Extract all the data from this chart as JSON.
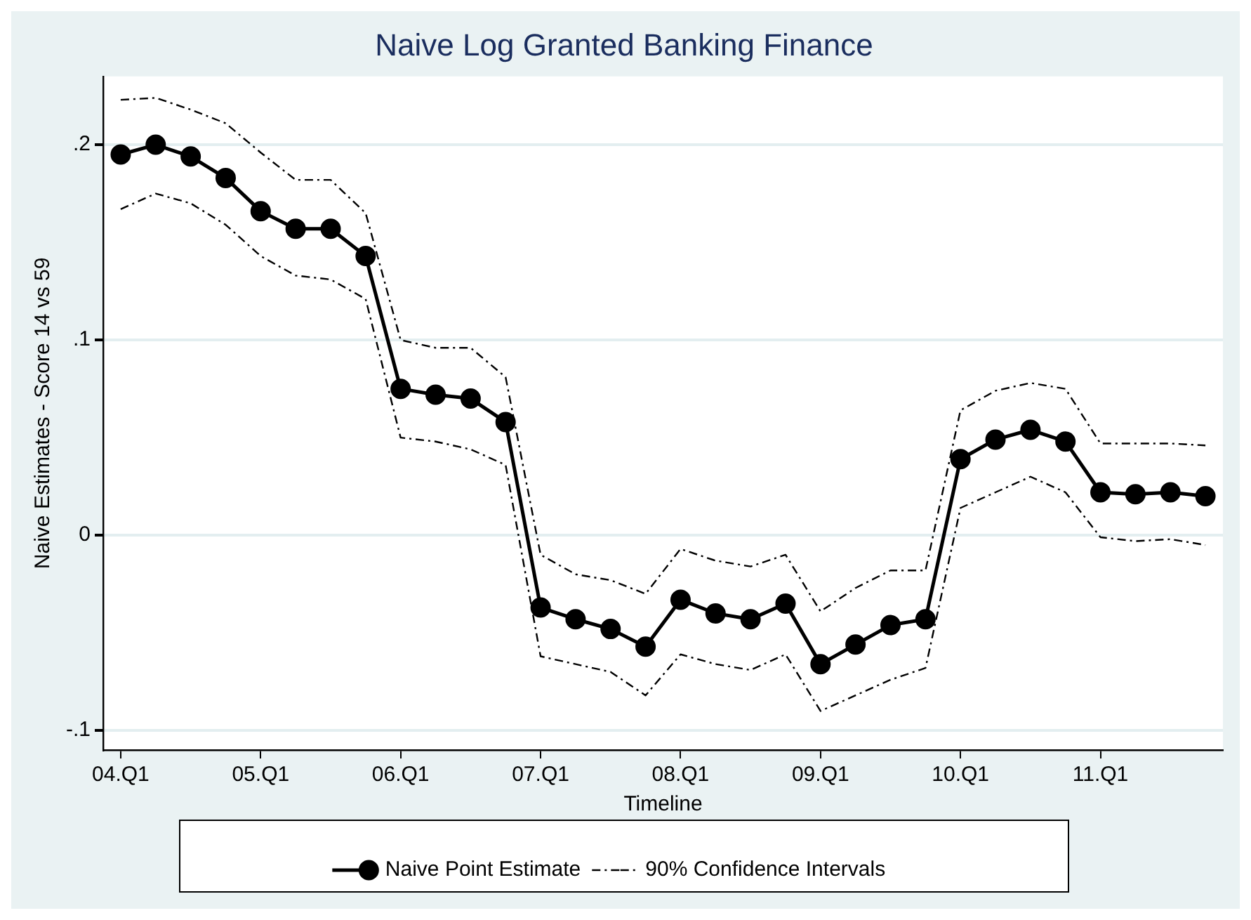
{
  "chart_data": {
    "type": "line",
    "title": "Naive Log Granted Banking Finance",
    "xlabel": "Timeline",
    "ylabel": "Naive Estimates - Score 14 vs 59",
    "categories": [
      "04.Q1",
      null,
      null,
      null,
      "05.Q1",
      null,
      null,
      null,
      "06.Q1",
      null,
      null,
      null,
      "07.Q1",
      null,
      null,
      null,
      "08.Q1",
      null,
      null,
      null,
      "09.Q1",
      null,
      null,
      null,
      "10.Q1",
      null,
      null,
      null,
      "11.Q1",
      null,
      null,
      null
    ],
    "series": [
      {
        "name": "Naive Point Estimate",
        "color": "#000000",
        "marker": "circle",
        "line_style": "solid",
        "values": [
          0.195,
          0.2,
          0.194,
          0.183,
          0.166,
          0.157,
          0.157,
          0.143,
          0.075,
          0.072,
          0.07,
          0.058,
          -0.037,
          -0.043,
          -0.048,
          -0.057,
          -0.033,
          -0.04,
          -0.043,
          -0.035,
          -0.066,
          -0.056,
          -0.046,
          -0.043,
          0.039,
          0.049,
          0.054,
          0.048,
          0.022,
          0.021,
          0.022,
          0.02
        ]
      },
      {
        "name": "90% Confidence Intervals",
        "color": "#000000",
        "marker": "none",
        "line_style": "dashed",
        "values": [
          0.223,
          0.224,
          0.218,
          0.211,
          0.196,
          0.182,
          0.182,
          0.165,
          0.1,
          0.096,
          0.096,
          0.081,
          -0.01,
          -0.02,
          -0.023,
          -0.03,
          -0.007,
          -0.013,
          -0.016,
          -0.01,
          -0.039,
          -0.027,
          -0.018,
          -0.018,
          0.064,
          0.074,
          0.078,
          0.075,
          0.047,
          0.047,
          0.047,
          0.046
        ]
      },
      {
        "color": "#000000",
        "marker": "none",
        "line_style": "dashed",
        "values": [
          0.167,
          0.175,
          0.17,
          0.159,
          0.143,
          0.133,
          0.131,
          0.121,
          0.05,
          0.048,
          0.044,
          0.036,
          -0.062,
          -0.066,
          -0.07,
          -0.082,
          -0.061,
          -0.066,
          -0.069,
          -0.061,
          -0.09,
          -0.082,
          -0.074,
          -0.068,
          0.014,
          0.022,
          0.03,
          0.022,
          -0.001,
          -0.003,
          -0.002,
          -0.005
        ]
      }
    ],
    "ylim": [
      -0.11,
      0.235
    ],
    "yticks": [
      {
        "value": -0.1,
        "label": "-.1"
      },
      0,
      {
        "value": 0.1,
        "label": ".1"
      },
      {
        "value": 0.2,
        "label": ".2"
      }
    ],
    "grid": "y",
    "legend": "bottom"
  }
}
